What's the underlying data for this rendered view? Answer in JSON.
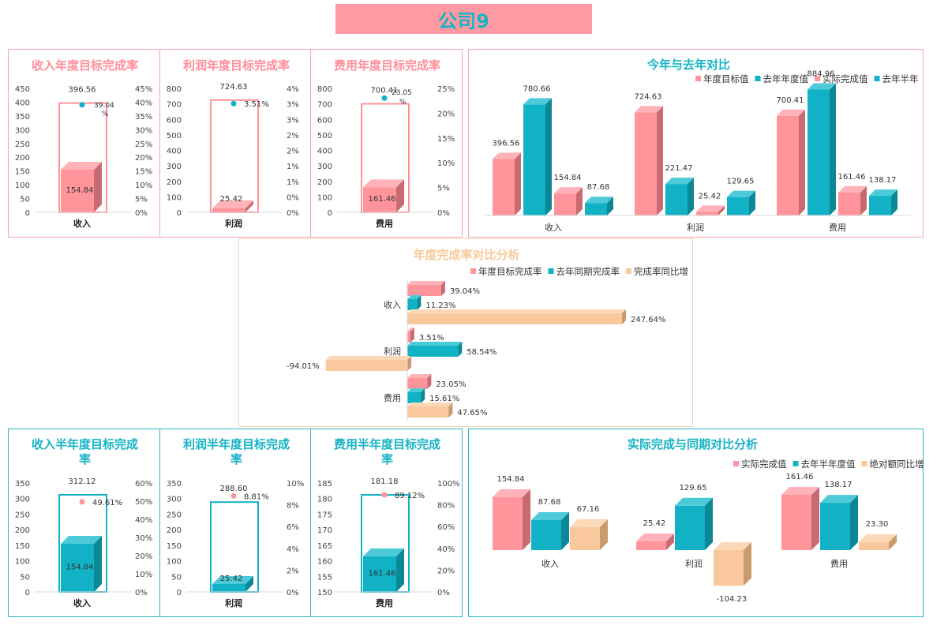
{
  "page_title": "公司9",
  "colors": {
    "pink": "#ff949b",
    "pink_side": "#c86a72",
    "pink_top": "#ffb2b7",
    "teal": "#12b2c6",
    "teal_side": "#0b8795",
    "teal_top": "#4ccad8",
    "peach": "#f9c99d",
    "peach_side": "#c99a6c",
    "peach_top": "#fbd9b8",
    "pink_border": "#f3a7ae",
    "teal_border": "#2fb7c6",
    "peach_border": "#f7d4b3",
    "pink_title": "#ff8f99",
    "teal_title": "#17b3c6",
    "peach_title": "#f8c998"
  },
  "chart_data": [
    {
      "id": "annual-income",
      "type": "bar",
      "title": "收入年度目标完成率",
      "category": "收入",
      "target": 396.56,
      "actual": 154.84,
      "rate": 39.04,
      "rate_label": "39.04%",
      "ylim": [
        0,
        450
      ],
      "yticks": [
        "0",
        "50",
        "100",
        "150",
        "200",
        "250",
        "300",
        "350",
        "400",
        "450"
      ],
      "y2lim": [
        0,
        45
      ],
      "y2ticks": [
        "0%",
        "5%",
        "10%",
        "15%",
        "20%",
        "25%",
        "30%",
        "35%",
        "40%",
        "45%"
      ],
      "target_label": "396.56",
      "actual_label": "154.84"
    },
    {
      "id": "annual-profit",
      "type": "bar",
      "title": "利润年度目标完成率",
      "category": "利润",
      "target": 724.63,
      "actual": 25.42,
      "rate": 3.51,
      "rate_label": "3.51%",
      "ylim": [
        0,
        800
      ],
      "yticks": [
        "0",
        "100",
        "200",
        "300",
        "400",
        "500",
        "600",
        "700",
        "800"
      ],
      "y2lim": [
        0,
        4
      ],
      "y2ticks": [
        "0%",
        "0%",
        "1%",
        "1%",
        "2%",
        "2%",
        "3%",
        "3%",
        "4%"
      ],
      "target_label": "724.63",
      "actual_label": "25.42"
    },
    {
      "id": "annual-expense",
      "type": "bar",
      "title": "费用年度目标完成率",
      "category": "费用",
      "target": 700.41,
      "actual": 161.46,
      "rate": 23.05,
      "rate_label": "23.05%",
      "ylim": [
        0,
        800
      ],
      "yticks": [
        "0",
        "100",
        "200",
        "300",
        "400",
        "500",
        "600",
        "700",
        "800"
      ],
      "y2lim": [
        0,
        25
      ],
      "y2ticks": [
        "0%",
        "5%",
        "10%",
        "15%",
        "20%",
        "25%"
      ],
      "target_label": "700.41",
      "actual_label": "161.46"
    },
    {
      "id": "yoy-compare",
      "type": "bar",
      "title": "今年与去年对比",
      "categories": [
        "收入",
        "利润",
        "费用"
      ],
      "series": [
        {
          "name": "年度目标值",
          "values": [
            396.56,
            724.63,
            700.41
          ]
        },
        {
          "name": "去年年度值",
          "values": [
            780.66,
            221.47,
            884.96
          ]
        },
        {
          "name": "实际完成值",
          "values": [
            154.84,
            25.42,
            161.46
          ]
        },
        {
          "name": "去年半年",
          "values": [
            87.68,
            129.65,
            138.17
          ]
        }
      ],
      "labels": [
        [
          "396.56",
          "780.66",
          "154.84",
          "87.68"
        ],
        [
          "724.63",
          "221.47",
          "25.42",
          "129.65"
        ],
        [
          "700.41",
          "884.96",
          "161.46",
          "138.17"
        ]
      ],
      "ylim": [
        0,
        1000
      ]
    },
    {
      "id": "rate-compare",
      "type": "bar",
      "title": "年度完成率对比分析",
      "orientation": "horizontal",
      "categories": [
        "收入",
        "利润",
        "费用"
      ],
      "series": [
        {
          "name": "年度目标完成率",
          "values": [
            39.04,
            3.51,
            23.05
          ]
        },
        {
          "name": "去年同期完成率",
          "values": [
            11.23,
            58.54,
            15.61
          ]
        },
        {
          "name": "完成率同比增",
          "values": [
            247.64,
            -94.01,
            47.65
          ]
        }
      ],
      "labels": [
        [
          "39.04%",
          "11.23%",
          "247.64%"
        ],
        [
          "3.51%",
          "58.54%",
          "-94.01%"
        ],
        [
          "23.05%",
          "15.61%",
          "47.65%"
        ]
      ]
    },
    {
      "id": "half-income",
      "type": "bar",
      "title": "收入半年度目标完成率",
      "category": "收入",
      "target": 312.12,
      "actual": 154.84,
      "rate": 49.61,
      "rate_label": "49.61%",
      "ylim": [
        0,
        350
      ],
      "yticks": [
        "0",
        "50",
        "100",
        "150",
        "200",
        "250",
        "300",
        "350"
      ],
      "y2lim": [
        0,
        60
      ],
      "y2ticks": [
        "0%",
        "10%",
        "20%",
        "30%",
        "40%",
        "50%",
        "60%"
      ],
      "target_label": "312.12",
      "actual_label": "154.84"
    },
    {
      "id": "half-profit",
      "type": "bar",
      "title": "利润半年度目标完成率",
      "category": "利润",
      "target": 288.6,
      "actual": 25.42,
      "rate": 8.81,
      "rate_label": "8.81%",
      "ylim": [
        0,
        350
      ],
      "yticks": [
        "0",
        "50",
        "100",
        "150",
        "200",
        "250",
        "300",
        "350"
      ],
      "y2lim": [
        0,
        10
      ],
      "y2ticks": [
        "0%",
        "2%",
        "4%",
        "6%",
        "8%",
        "10%"
      ],
      "target_label": "288.60",
      "actual_label": "25.42"
    },
    {
      "id": "half-expense",
      "type": "bar",
      "title": "费用半年度目标完成率",
      "category": "费用",
      "target": 181.18,
      "actual": 161.46,
      "rate": 89.12,
      "rate_label": "89.12%",
      "ylim": [
        150,
        185
      ],
      "yticks": [
        "150",
        "155",
        "160",
        "165",
        "170",
        "175",
        "180",
        "185"
      ],
      "y2lim": [
        0,
        100
      ],
      "y2ticks": [
        "0%",
        "20%",
        "40%",
        "60%",
        "80%",
        "100%"
      ],
      "target_label": "181.18",
      "actual_label": "161.46"
    },
    {
      "id": "actual-compare",
      "type": "bar",
      "title": "实际完成与同期对比分析",
      "categories": [
        "收入",
        "利润",
        "费用"
      ],
      "series": [
        {
          "name": "实际完成值",
          "values": [
            154.84,
            25.42,
            161.46
          ]
        },
        {
          "name": "去年半年度值",
          "values": [
            87.68,
            129.65,
            138.17
          ]
        },
        {
          "name": "绝对额同比增",
          "values": [
            67.16,
            -104.23,
            23.3
          ]
        }
      ],
      "labels": [
        [
          "154.84",
          "87.68",
          "67.16"
        ],
        [
          "25.42",
          "129.65",
          "-104.23"
        ],
        [
          "161.46",
          "138.17",
          "23.30"
        ]
      ]
    }
  ]
}
